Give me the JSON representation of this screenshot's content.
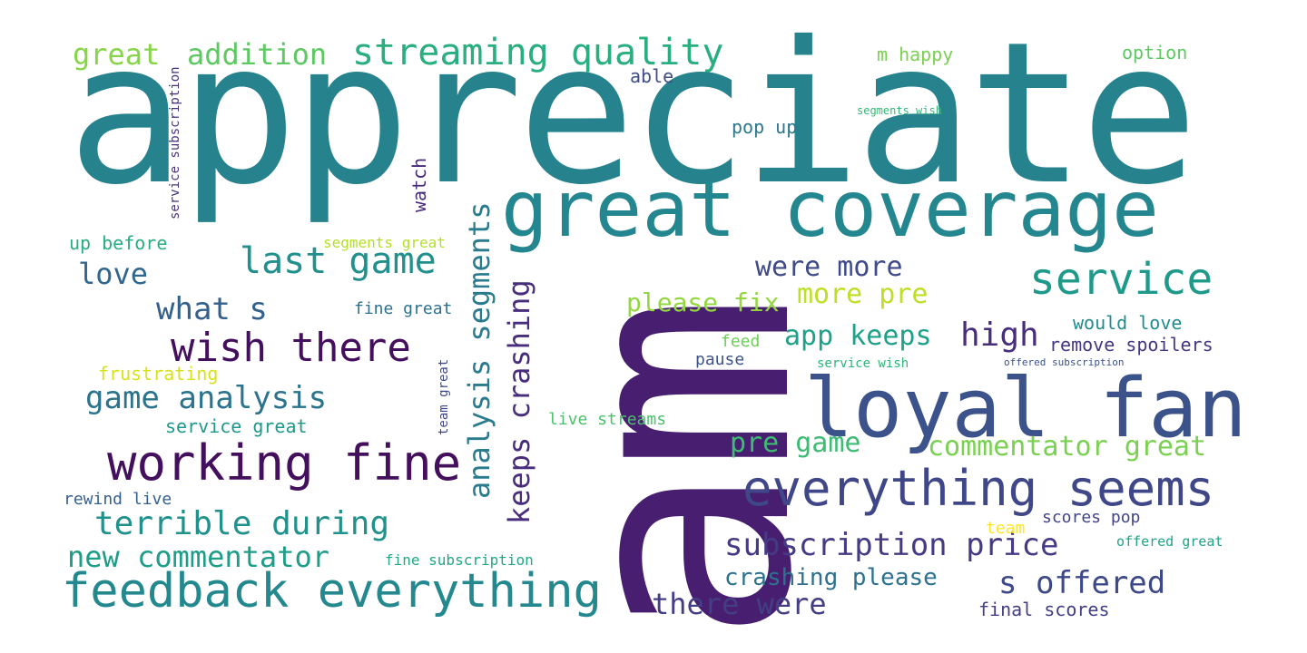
{
  "words": [
    {
      "text": "appreciate",
      "color": "#26838e"
    },
    {
      "text": "am",
      "color": "#481f70"
    },
    {
      "text": "great coverage",
      "color": "#24868e"
    },
    {
      "text": "loyal fan",
      "color": "#3b528b"
    },
    {
      "text": "feedback everything",
      "color": "#23898e"
    },
    {
      "text": "working fine",
      "color": "#440f5c"
    },
    {
      "text": "everything seems",
      "color": "#3f4788"
    },
    {
      "text": "wish there",
      "color": "#440f5c"
    },
    {
      "text": "service",
      "color": "#1f9a8a"
    },
    {
      "text": "streaming quality",
      "color": "#29af7f"
    },
    {
      "text": "last game",
      "color": "#22908d"
    },
    {
      "text": "analysis segments",
      "color": "#2a7b8e"
    },
    {
      "text": "keeps crashing",
      "color": "#472d7b"
    },
    {
      "text": "subscription price",
      "color": "#443b84"
    },
    {
      "text": "terrible during",
      "color": "#21918c"
    },
    {
      "text": "game analysis",
      "color": "#2c738e"
    },
    {
      "text": "new commentator",
      "color": "#1e9d89"
    },
    {
      "text": "s offered",
      "color": "#3e4989"
    },
    {
      "text": "there were",
      "color": "#433e85"
    },
    {
      "text": "commentator great",
      "color": "#7ad151"
    },
    {
      "text": "pre game",
      "color": "#3dbc74"
    },
    {
      "text": "were more",
      "color": "#3e4a89"
    },
    {
      "text": "more pre",
      "color": "#bddf26"
    },
    {
      "text": "app keeps",
      "color": "#1fa088"
    },
    {
      "text": "high",
      "color": "#472d7b"
    },
    {
      "text": "please fix",
      "color": "#93d741"
    },
    {
      "text": "crashing please",
      "color": "#2c728e"
    },
    {
      "text": "great",
      "color": "#86d549"
    },
    {
      "text": "addition",
      "color": "#5ec962"
    },
    {
      "text": "love",
      "color": "#31668e"
    },
    {
      "text": "what s",
      "color": "#34608d"
    },
    {
      "text": "m happy",
      "color": "#7ad151"
    },
    {
      "text": "option",
      "color": "#5ec962"
    },
    {
      "text": "able",
      "color": "#3e4c8a"
    },
    {
      "text": "pop up",
      "color": "#2a788e"
    },
    {
      "text": "segments wish",
      "color": "#35b779"
    },
    {
      "text": "service subscription",
      "color": "#46337e"
    },
    {
      "text": "watch",
      "color": "#472c7a"
    },
    {
      "text": "up before",
      "color": "#27ad81"
    },
    {
      "text": "segments great",
      "color": "#b5de2b"
    },
    {
      "text": "fine great",
      "color": "#2d718e"
    },
    {
      "text": "would love",
      "color": "#228c8d"
    },
    {
      "text": "remove spoilers",
      "color": "#453781"
    },
    {
      "text": "feed",
      "color": "#6ece58"
    },
    {
      "text": "pause",
      "color": "#3b528b"
    },
    {
      "text": "frustrating",
      "color": "#d8e219"
    },
    {
      "text": "team great",
      "color": "#3f4788"
    },
    {
      "text": "service wish",
      "color": "#2fb47c"
    },
    {
      "text": "offered subscription",
      "color": "#3b528b"
    },
    {
      "text": "service great",
      "color": "#1f978b"
    },
    {
      "text": "live streams",
      "color": "#4ac16d"
    },
    {
      "text": "rewind live",
      "color": "#355f8d"
    },
    {
      "text": "team",
      "color": "#fde725"
    },
    {
      "text": "scores pop",
      "color": "#414487"
    },
    {
      "text": "offered great",
      "color": "#20a386"
    },
    {
      "text": "fine subscription",
      "color": "#22a785"
    },
    {
      "text": "final scores",
      "color": "#433e85"
    }
  ]
}
